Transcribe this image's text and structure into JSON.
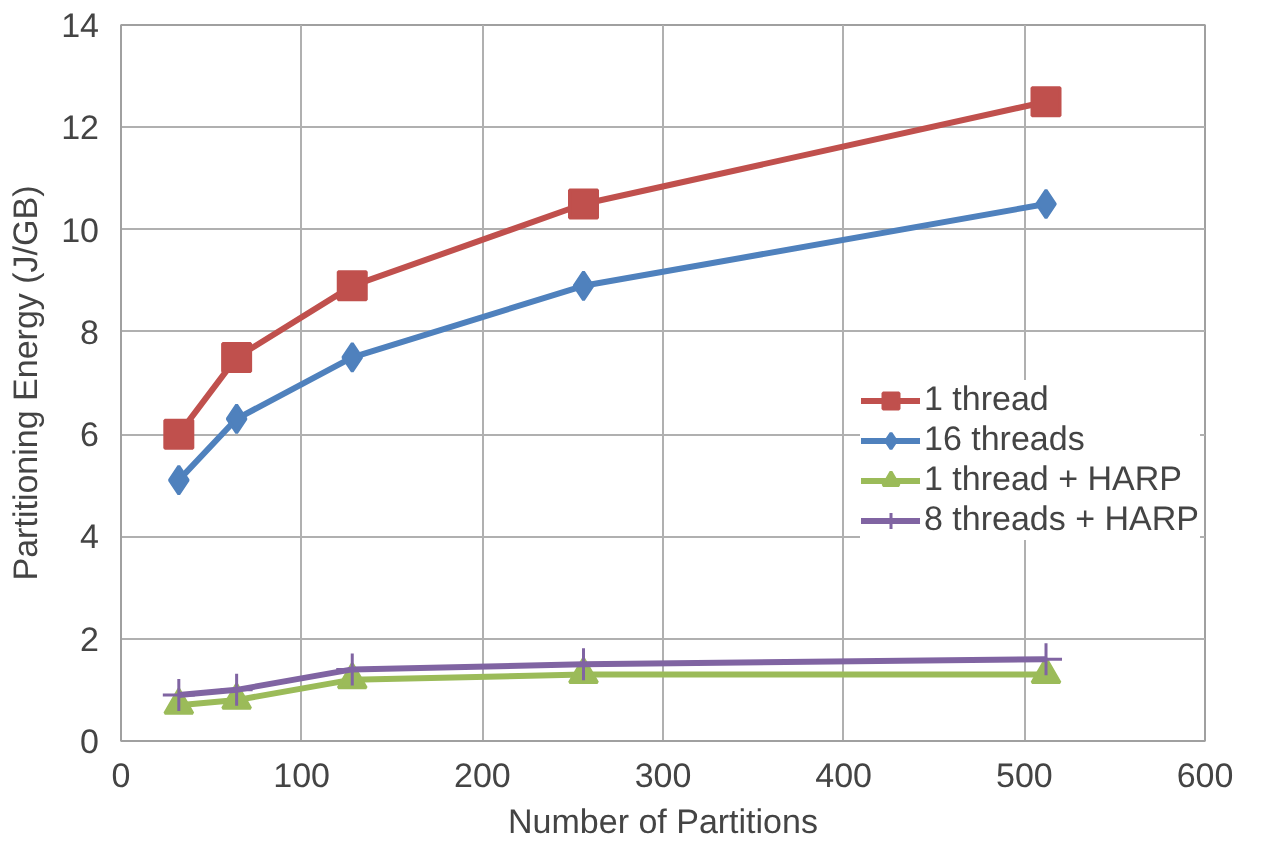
{
  "chart_data": {
    "type": "line",
    "xlabel": "Number of Partitions",
    "ylabel": "Partitioning Energy (J/GB)",
    "x": [
      32,
      64,
      128,
      256,
      512
    ],
    "series": [
      {
        "name": "1 thread",
        "color": "#c0504d",
        "marker": "square",
        "values": [
          6.0,
          7.5,
          8.9,
          10.5,
          12.5
        ]
      },
      {
        "name": "16 threads",
        "color": "#4f81bd",
        "marker": "diamond",
        "values": [
          5.1,
          6.3,
          7.5,
          8.9,
          10.5
        ]
      },
      {
        "name": "1 thread + HARP",
        "color": "#9bbb59",
        "marker": "triangle",
        "values": [
          0.7,
          0.8,
          1.2,
          1.3,
          1.3
        ]
      },
      {
        "name": "8 threads + HARP",
        "color": "#8064a2",
        "marker": "cross",
        "values": [
          0.9,
          1.0,
          1.4,
          1.5,
          1.6
        ]
      }
    ],
    "xlim": [
      0,
      600
    ],
    "xticks": [
      0,
      100,
      200,
      300,
      400,
      500,
      600
    ],
    "ylim": [
      0,
      14
    ],
    "yticks": [
      0,
      2,
      4,
      6,
      8,
      10,
      12,
      14
    ],
    "grid": true,
    "legend": "right"
  }
}
